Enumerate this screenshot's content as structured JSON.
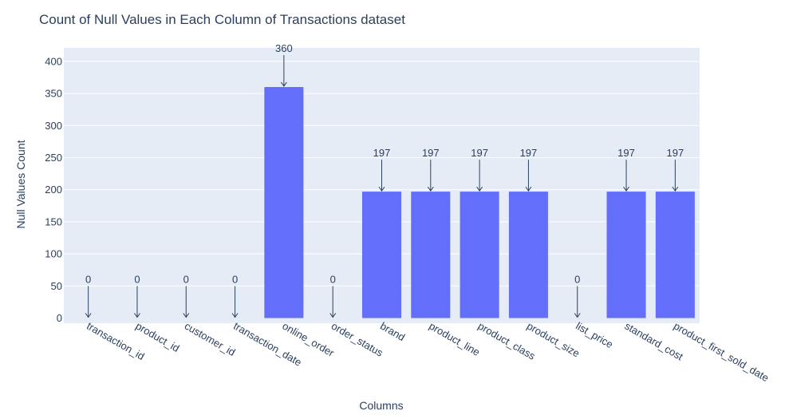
{
  "chart_data": {
    "type": "bar",
    "title": "Count of Null Values in Each Column of Transactions dataset",
    "xlabel": "Columns",
    "ylabel": "Null Values Count",
    "categories": [
      "transaction_id",
      "product_id",
      "customer_id",
      "transaction_date",
      "online_order",
      "order_status",
      "brand",
      "product_line",
      "product_class",
      "product_size",
      "list_price",
      "standard_cost",
      "product_first_sold_date"
    ],
    "values": [
      0,
      0,
      0,
      0,
      360,
      0,
      197,
      197,
      197,
      197,
      0,
      197,
      197
    ],
    "data_labels": [
      "0",
      "0",
      "0",
      "0",
      "360",
      "0",
      "197",
      "197",
      "197",
      "197",
      "0",
      "197",
      "197"
    ],
    "ylim": [
      0,
      420
    ],
    "yticks": [
      0,
      50,
      100,
      150,
      200,
      250,
      300,
      350,
      400
    ],
    "ytick_labels": [
      "0",
      "50",
      "100",
      "150",
      "200",
      "250",
      "300",
      "350",
      "400"
    ],
    "grid": true,
    "legend": "none",
    "colors": {
      "bar": "#636efa",
      "plot_bg": "#e5ecf6",
      "grid": "#ffffff",
      "text": "#2a3f5f",
      "annotation": "#2a3f5f"
    }
  }
}
